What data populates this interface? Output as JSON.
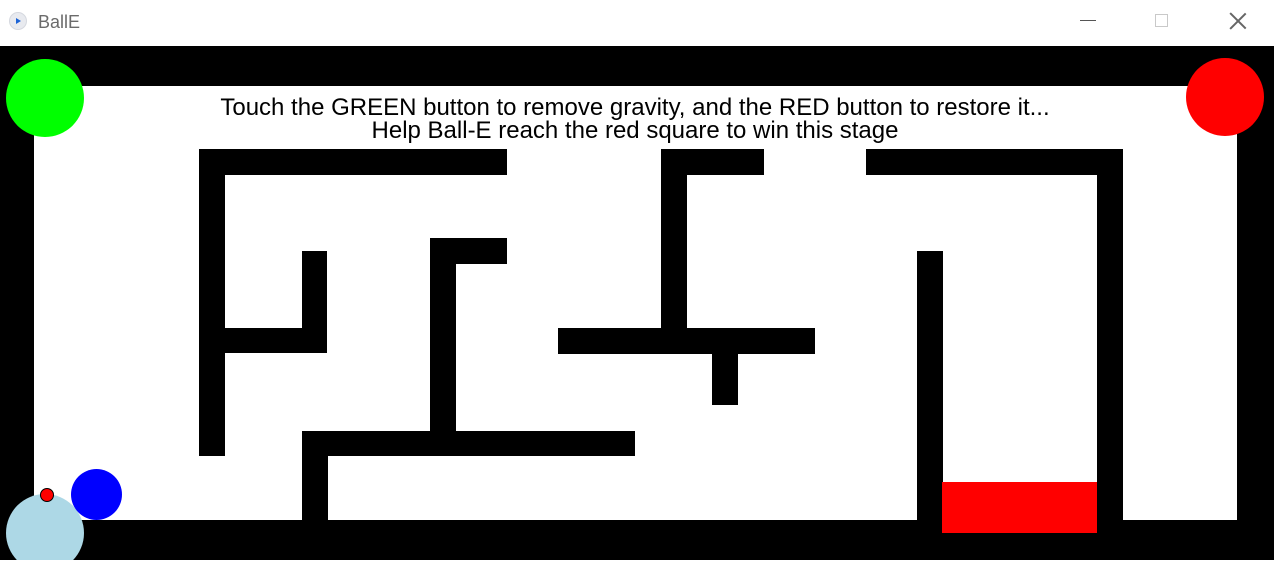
{
  "window": {
    "title": "BallE",
    "controls": {
      "minimize": "minimize",
      "maximize": "maximize",
      "close": "close"
    }
  },
  "game": {
    "instructions": {
      "line1": "Touch the GREEN button to remove gravity, and the RED button to restore it...",
      "line2": "Help Ball-E reach the red square to win this stage"
    },
    "colors": {
      "background": "#000000",
      "playfield": "#ffffff",
      "wall": "#000000",
      "gravity_off_button": "#00ff00",
      "gravity_on_button": "#ff0000",
      "goal": "#ff0000",
      "player_ball": "#0000ff",
      "spawn_pad": "#add8e6",
      "spawn_marker": "#ff0000"
    },
    "icons": {
      "gravity_off_button": "green-circle",
      "gravity_on_button": "red-circle",
      "goal": "red-square",
      "player": "blue-ball",
      "spawn_pad": "light-blue-circle",
      "spawn_marker": "small-red-dot"
    }
  }
}
